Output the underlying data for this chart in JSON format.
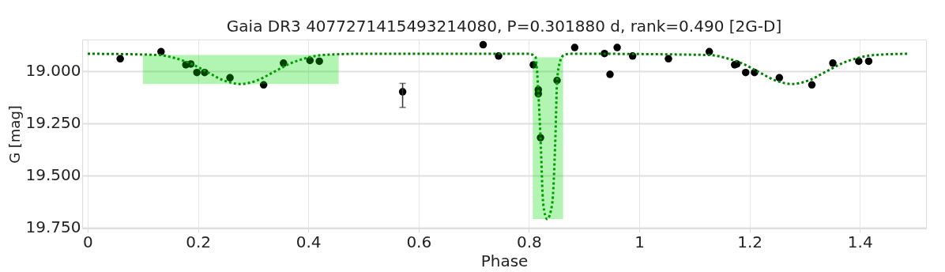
{
  "chart_data": {
    "type": "scatter",
    "title": "Gaia DR3 4077271415493214080, P=0.301880 d, rank=0.490 [2G-D]",
    "xlabel": "Phase",
    "ylabel": "G [mag]",
    "xlim": [
      -0.01,
      1.52
    ],
    "ylim": [
      19.755,
      18.85
    ],
    "xticks": [
      0,
      0.2,
      0.4,
      0.6,
      0.8,
      1,
      1.2,
      1.4
    ],
    "yticks": [
      {
        "value": 19.0,
        "label": "19.000"
      },
      {
        "value": 19.25,
        "label": "19.250"
      },
      {
        "value": 19.5,
        "label": "19.500"
      },
      {
        "value": 19.75,
        "label": "19.750"
      }
    ],
    "grid": true,
    "marker": "circle",
    "series": [
      {
        "color": "#000000",
        "x": [
          0.059,
          0.133,
          0.178,
          0.187,
          0.198,
          0.212,
          0.258,
          0.319,
          0.355,
          0.403,
          0.42,
          0.571,
          0.717,
          0.745,
          0.808,
          0.817,
          0.817,
          0.821,
          0.851,
          0.883,
          0.937,
          0.947,
          0.96,
          0.988,
          1.053,
          1.127,
          1.173,
          1.177,
          1.193,
          1.209,
          1.254,
          1.313,
          1.351,
          1.398,
          1.416
        ],
        "values": [
          18.942,
          18.908,
          18.971,
          18.967,
          19.008,
          19.008,
          19.033,
          19.067,
          18.963,
          18.95,
          18.954,
          19.1,
          18.875,
          18.929,
          18.971,
          19.09,
          19.11,
          19.32,
          19.046,
          18.888,
          18.917,
          19.017,
          18.888,
          18.929,
          18.942,
          18.908,
          18.971,
          18.967,
          19.008,
          19.008,
          19.033,
          19.067,
          18.963,
          18.954,
          18.954
        ],
        "errors": [
          null,
          null,
          null,
          null,
          null,
          null,
          null,
          null,
          null,
          null,
          null,
          [
            19.06,
            19.175
          ],
          null,
          null,
          null,
          null,
          null,
          null,
          null,
          null,
          null,
          null,
          null,
          null,
          null,
          null,
          null,
          null,
          null,
          null,
          null,
          null,
          null,
          null,
          null
        ]
      },
      {
        "type": "line",
        "color": "#008000",
        "line_style": "dotted",
        "marker": "none",
        "x": [
          0,
          0.127,
          0.157,
          0.187,
          0.217,
          0.247,
          0.277,
          0.307,
          0.337,
          0.367,
          0.397,
          0.427,
          0.5,
          0.8,
          0.812,
          0.817,
          0.821,
          0.826,
          0.833,
          0.842,
          0.848,
          0.851,
          0.856,
          0.863,
          0.875,
          1.127,
          1.157,
          1.187,
          1.217,
          1.247,
          1.277,
          1.307,
          1.337,
          1.367,
          1.397,
          1.427,
          1.49
        ],
        "values": [
          18.918,
          18.924,
          18.938,
          18.965,
          19.006,
          19.046,
          19.063,
          19.046,
          19.006,
          18.965,
          18.938,
          18.924,
          18.918,
          18.918,
          18.935,
          19.1,
          19.32,
          19.64,
          19.71,
          19.64,
          19.32,
          19.05,
          18.96,
          18.925,
          18.918,
          18.924,
          18.938,
          18.965,
          19.006,
          19.046,
          19.063,
          19.046,
          19.006,
          18.965,
          18.938,
          18.924,
          18.918
        ]
      }
    ],
    "bands": [
      {
        "axis": "x",
        "from": 0.1,
        "to": 0.455,
        "color": "#00dd00"
      },
      {
        "axis": "x",
        "from": 0.807,
        "to": 0.862,
        "color": "#00dd00"
      }
    ]
  }
}
